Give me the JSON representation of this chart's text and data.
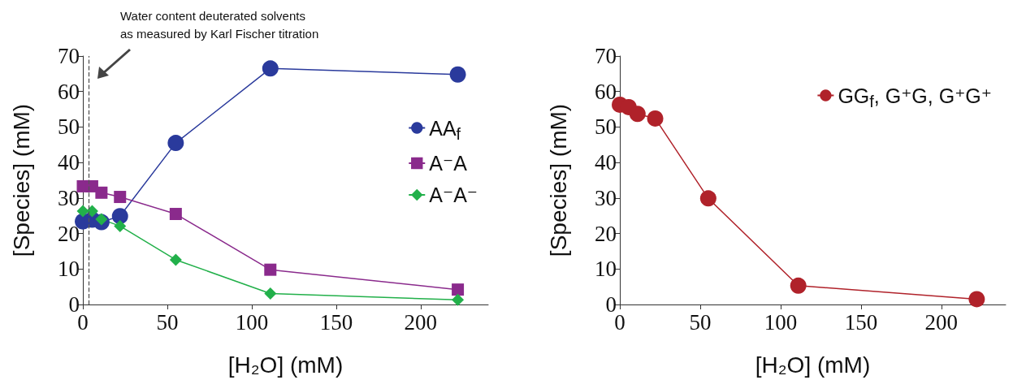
{
  "chart_data": [
    {
      "type": "line",
      "xlabel": "[H₂O] (mM)",
      "ylabel": "[Species] (mM)",
      "x": [
        0,
        5.5,
        11,
        22,
        55,
        111,
        222
      ],
      "xlim": [
        0,
        240
      ],
      "xticks": [
        0,
        50,
        100,
        150,
        200
      ],
      "ylim": [
        0,
        70
      ],
      "yticks": [
        0,
        10,
        20,
        30,
        40,
        50,
        60,
        70
      ],
      "grid": false,
      "legend": "right",
      "series": [
        {
          "name": "AA$_{f}$",
          "color": "#2a3a9c",
          "marker": "circle",
          "values": [
            23.4,
            23.9,
            23.2,
            24.9,
            45.5,
            66.5,
            64.8
          ]
        },
        {
          "name": "A⁻A",
          "color": "#8a2a8c",
          "marker": "square",
          "values": [
            33.3,
            33.3,
            31.5,
            30.3,
            25.5,
            9.8,
            4.2
          ]
        },
        {
          "name": "A⁻A⁻",
          "color": "#22b04a",
          "marker": "diamond",
          "values": [
            26.3,
            26.3,
            24.0,
            22.1,
            12.6,
            3.1,
            1.3
          ]
        }
      ],
      "ref_lines": [
        {
          "axis": "x",
          "value": 3.3,
          "color": "#555555",
          "line_style": "dashed"
        }
      ],
      "annotations": [
        "Water content deuterated solvents\nas measured by Karl Fischer titration"
      ]
    },
    {
      "type": "line",
      "xlabel": "[H₂O] (mM)",
      "ylabel": "[Species] (mM)",
      "x": [
        0,
        5.5,
        11,
        22,
        55,
        111,
        222
      ],
      "xlim": [
        0,
        240
      ],
      "xticks": [
        0,
        50,
        100,
        150,
        200
      ],
      "ylim": [
        0,
        70
      ],
      "yticks": [
        0,
        10,
        20,
        30,
        40,
        50,
        60,
        70
      ],
      "grid": false,
      "legend": "top right",
      "series": [
        {
          "name": "GG$_{f}$, G⁺G, G⁺G⁺",
          "color": "#b0222a",
          "marker": "circle",
          "values": [
            56.3,
            55.6,
            53.7,
            52.4,
            29.9,
            5.3,
            1.5
          ]
        }
      ]
    }
  ]
}
